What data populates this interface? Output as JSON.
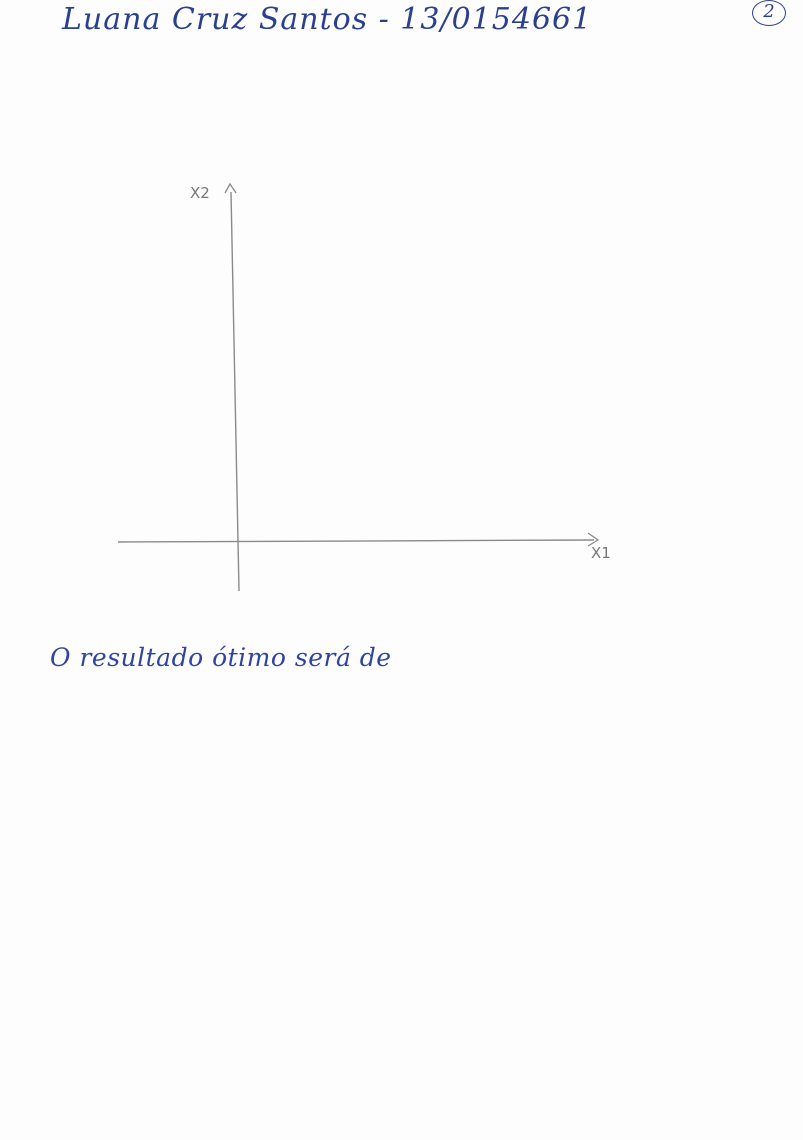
{
  "header": {
    "name_and_id": "Luana Cruz Santos - 13/0154661",
    "page_number": "2"
  },
  "graph": {
    "y_axis_label": "X2",
    "x_axis_label": "X1"
  },
  "answer": {
    "text": "O resultado ótimo será de"
  }
}
